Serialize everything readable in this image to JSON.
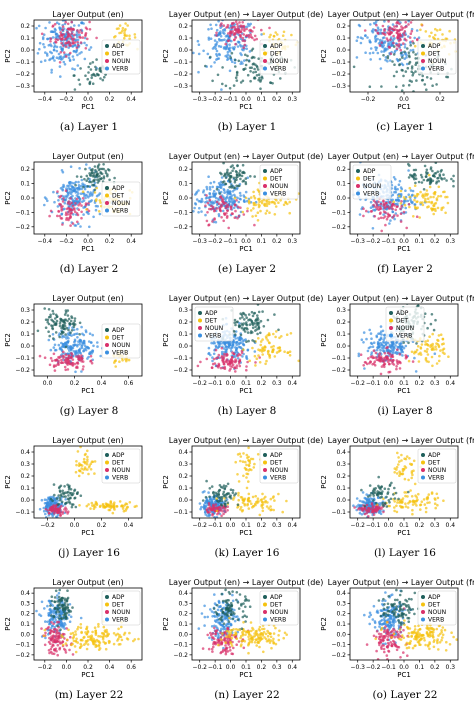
{
  "colors": {
    "ADP": "#1f5f5b",
    "DET": "#f5c20f",
    "NOUN": "#d9306a",
    "VERB": "#3a8fe0"
  },
  "legend": [
    "ADP",
    "DET",
    "NOUN",
    "VERB"
  ],
  "chart_data": [
    {
      "type": "scatter",
      "caption": "(a) Layer 1",
      "title": "Layer Output (en)",
      "xlabel": "PC1",
      "ylabel": "PC2",
      "xticks": [
        "−0.4",
        "−0.2",
        "0.0",
        "0.2",
        "0.4"
      ],
      "yticks": [
        "0.2",
        "0.1",
        "0.0",
        "−0.1",
        "−0.2",
        "−0.3"
      ],
      "xlim": [
        -0.45,
        0.45
      ],
      "ylim": [
        -0.33,
        0.22
      ],
      "legend_pos": "center-right",
      "clusters": {
        "VERB": [
          {
            "x": -0.2,
            "y": 0.05,
            "sx": 0.1,
            "sy": 0.1,
            "n": 200
          }
        ],
        "NOUN": [
          {
            "x": -0.15,
            "y": 0.1,
            "sx": 0.08,
            "sy": 0.06,
            "n": 90
          }
        ],
        "ADP": [
          {
            "x": 0.05,
            "y": -0.2,
            "sx": 0.08,
            "sy": 0.06,
            "n": 40
          }
        ],
        "DET": [
          {
            "x": 0.3,
            "y": 0.1,
            "sx": 0.05,
            "sy": 0.04,
            "n": 30
          }
        ]
      }
    },
    {
      "type": "scatter",
      "caption": "(b) Layer 1",
      "title": "Layer Output (en) → Layer Output (de)",
      "xlabel": "PC1",
      "ylabel": "PC2",
      "xticks": [
        "−0.3",
        "−0.2",
        "−0.1",
        "0.0",
        "0.1",
        "0.2",
        "0.3"
      ],
      "yticks": [
        "0.2",
        "0.1",
        "0.0",
        "−0.1",
        "−0.2",
        "−0.3"
      ],
      "xlim": [
        -0.32,
        0.32
      ],
      "ylim": [
        -0.33,
        0.22
      ],
      "legend_pos": "center-right",
      "clusters": {
        "VERB": [
          {
            "x": -0.1,
            "y": 0.05,
            "sx": 0.08,
            "sy": 0.09,
            "n": 170
          }
        ],
        "NOUN": [
          {
            "x": -0.05,
            "y": 0.12,
            "sx": 0.06,
            "sy": 0.05,
            "n": 90
          }
        ],
        "ADP": [
          {
            "x": 0.05,
            "y": -0.15,
            "sx": 0.1,
            "sy": 0.08,
            "n": 90
          }
        ],
        "DET": [
          {
            "x": 0.2,
            "y": 0.05,
            "sx": 0.06,
            "sy": 0.06,
            "n": 40
          }
        ]
      }
    },
    {
      "type": "scatter",
      "caption": "(c) Layer 1",
      "title": "Layer Output (en) → Layer Output (fr1",
      "xlabel": "PC1",
      "ylabel": "PC2",
      "xticks": [
        "−0.2",
        "0.0",
        "0.2"
      ],
      "yticks": [
        "0.2",
        "0.1",
        "0.0",
        "−0.1",
        "−0.2",
        "−0.3"
      ],
      "xlim": [
        -0.32,
        0.32
      ],
      "ylim": [
        -0.33,
        0.22
      ],
      "legend_pos": "center-right",
      "clusters": {
        "VERB": [
          {
            "x": -0.1,
            "y": 0.05,
            "sx": 0.08,
            "sy": 0.09,
            "n": 170
          }
        ],
        "NOUN": [
          {
            "x": -0.05,
            "y": 0.12,
            "sx": 0.06,
            "sy": 0.05,
            "n": 90
          }
        ],
        "ADP": [
          {
            "x": 0.08,
            "y": -0.15,
            "sx": 0.1,
            "sy": 0.08,
            "n": 90
          }
        ],
        "DET": [
          {
            "x": 0.2,
            "y": 0.05,
            "sx": 0.06,
            "sy": 0.06,
            "n": 40
          }
        ]
      }
    },
    {
      "type": "scatter",
      "caption": "(d) Layer 2",
      "title": "Layer Output (en)",
      "xlabel": "PC1",
      "ylabel": "PC2",
      "xticks": [
        "−0.4",
        "−0.2",
        "0.0",
        "0.2",
        "0.4"
      ],
      "yticks": [
        "0.2",
        "0.1",
        "0.0",
        "−0.1",
        "−0.2"
      ],
      "xlim": [
        -0.45,
        0.45
      ],
      "ylim": [
        -0.25,
        0.25
      ],
      "legend_pos": "center-right",
      "clusters": {
        "VERB": [
          {
            "x": -0.1,
            "y": 0.0,
            "sx": 0.1,
            "sy": 0.08,
            "n": 200
          }
        ],
        "NOUN": [
          {
            "x": -0.15,
            "y": -0.08,
            "sx": 0.07,
            "sy": 0.05,
            "n": 70
          }
        ],
        "ADP": [
          {
            "x": 0.05,
            "y": 0.15,
            "sx": 0.06,
            "sy": 0.04,
            "n": 70
          }
        ],
        "DET": [
          {
            "x": 0.2,
            "y": -0.02,
            "sx": 0.08,
            "sy": 0.05,
            "n": 60
          }
        ]
      }
    },
    {
      "type": "scatter",
      "caption": "(e) Layer 2",
      "title": "Layer Output (en) → Layer Output (de)",
      "xlabel": "PC1",
      "ylabel": "PC2",
      "xticks": [
        "−0.3",
        "−0.2",
        "−0.1",
        "0.0",
        "0.1",
        "0.2",
        "0.3"
      ],
      "yticks": [
        "0.2",
        "0.1",
        "0.0",
        "−0.1",
        "−0.2"
      ],
      "xlim": [
        -0.32,
        0.32
      ],
      "ylim": [
        -0.25,
        0.25
      ],
      "legend_pos": "top-right",
      "clusters": {
        "VERB": [
          {
            "x": -0.15,
            "y": 0.0,
            "sx": 0.08,
            "sy": 0.07,
            "n": 200
          }
        ],
        "NOUN": [
          {
            "x": -0.12,
            "y": -0.08,
            "sx": 0.06,
            "sy": 0.05,
            "n": 70
          }
        ],
        "ADP": [
          {
            "x": -0.08,
            "y": 0.15,
            "sx": 0.05,
            "sy": 0.05,
            "n": 70
          }
        ],
        "DET": [
          {
            "x": 0.12,
            "y": -0.02,
            "sx": 0.08,
            "sy": 0.05,
            "n": 80
          }
        ]
      }
    },
    {
      "type": "scatter",
      "caption": "(f) Layer 2",
      "title": "Layer Output (en) → Layer Output (fr1",
      "xlabel": "PC1",
      "ylabel": "PC2",
      "xticks": [
        "−0.3",
        "−0.2",
        "−0.1",
        "0.0",
        "0.1",
        "0.2",
        "0.3"
      ],
      "yticks": [
        "0.2",
        "0.1",
        "0.0",
        "−0.1",
        "−0.2"
      ],
      "xlim": [
        -0.32,
        0.32
      ],
      "ylim": [
        -0.25,
        0.25
      ],
      "legend_pos": "top-left",
      "clusters": {
        "VERB": [
          {
            "x": -0.1,
            "y": 0.0,
            "sx": 0.08,
            "sy": 0.07,
            "n": 200
          }
        ],
        "NOUN": [
          {
            "x": -0.12,
            "y": -0.08,
            "sx": 0.06,
            "sy": 0.05,
            "n": 70
          }
        ],
        "ADP": [
          {
            "x": 0.15,
            "y": 0.15,
            "sx": 0.06,
            "sy": 0.04,
            "n": 70
          }
        ],
        "DET": [
          {
            "x": 0.12,
            "y": -0.02,
            "sx": 0.08,
            "sy": 0.05,
            "n": 80
          }
        ]
      }
    },
    {
      "type": "scatter",
      "caption": "(g) Layer 8",
      "title": "Layer Output (en)",
      "xlabel": "PC1",
      "ylabel": "PC2",
      "xticks": [
        "0.0",
        "0.2",
        "0.4",
        "0.6"
      ],
      "yticks": [
        "0.3",
        "0.2",
        "0.1",
        "0.0",
        "−0.1",
        "−0.2"
      ],
      "xlim": [
        -0.15,
        0.65
      ],
      "ylim": [
        -0.25,
        0.35
      ],
      "legend_pos": "center-right",
      "clusters": {
        "VERB": [
          {
            "x": 0.15,
            "y": 0.0,
            "sx": 0.08,
            "sy": 0.07,
            "n": 180
          }
        ],
        "NOUN": [
          {
            "x": 0.1,
            "y": -0.12,
            "sx": 0.07,
            "sy": 0.04,
            "n": 90
          }
        ],
        "ADP": [
          {
            "x": 0.05,
            "y": 0.18,
            "sx": 0.06,
            "sy": 0.06,
            "n": 90
          }
        ],
        "DET": [
          {
            "x": 0.5,
            "y": -0.1,
            "sx": 0.04,
            "sy": 0.03,
            "n": 25
          }
        ]
      }
    },
    {
      "type": "scatter",
      "caption": "(h) Layer 8",
      "title": "Layer Output (en) → Layer Output (de)",
      "xlabel": "PC1",
      "ylabel": "PC2",
      "xticks": [
        "−0.2",
        "−0.1",
        "0.0",
        "0.1",
        "0.2",
        "0.3",
        "0.4"
      ],
      "yticks": [
        "0.3",
        "0.2",
        "0.1",
        "0.0",
        "−0.1",
        "−0.2"
      ],
      "xlim": [
        -0.25,
        0.45
      ],
      "ylim": [
        -0.25,
        0.35
      ],
      "legend_pos": "top-left",
      "clusters": {
        "VERB": [
          {
            "x": 0.0,
            "y": 0.0,
            "sx": 0.07,
            "sy": 0.07,
            "n": 180
          }
        ],
        "NOUN": [
          {
            "x": -0.02,
            "y": -0.12,
            "sx": 0.07,
            "sy": 0.04,
            "n": 90
          }
        ],
        "ADP": [
          {
            "x": 0.12,
            "y": 0.18,
            "sx": 0.07,
            "sy": 0.06,
            "n": 90
          }
        ],
        "DET": [
          {
            "x": 0.25,
            "y": -0.02,
            "sx": 0.06,
            "sy": 0.06,
            "n": 70
          }
        ]
      }
    },
    {
      "type": "scatter",
      "caption": "(i) Layer 8",
      "title": "Layer Output (en) → Layer Output (fr1",
      "xlabel": "PC1",
      "ylabel": "PC2",
      "xticks": [
        "−0.2",
        "−0.1",
        "0.0",
        "0.1",
        "0.2",
        "0.3",
        "0.4"
      ],
      "yticks": [
        "0.3",
        "0.2",
        "0.1",
        "0.0",
        "−0.1",
        "−0.2"
      ],
      "xlim": [
        -0.25,
        0.45
      ],
      "ylim": [
        -0.25,
        0.35
      ],
      "legend_pos": "top-center",
      "clusters": {
        "VERB": [
          {
            "x": 0.0,
            "y": 0.0,
            "sx": 0.07,
            "sy": 0.07,
            "n": 180
          }
        ],
        "NOUN": [
          {
            "x": -0.02,
            "y": -0.12,
            "sx": 0.07,
            "sy": 0.04,
            "n": 90
          }
        ],
        "ADP": [
          {
            "x": 0.15,
            "y": 0.18,
            "sx": 0.06,
            "sy": 0.07,
            "n": 90
          }
        ],
        "DET": [
          {
            "x": 0.25,
            "y": -0.02,
            "sx": 0.06,
            "sy": 0.06,
            "n": 70
          }
        ]
      }
    },
    {
      "type": "scatter",
      "caption": "(j) Layer 16",
      "title": "Layer Output (en)",
      "xlabel": "PC1",
      "ylabel": "PC2",
      "xticks": [
        "−0.2",
        "0.0",
        "0.2",
        "0.4"
      ],
      "yticks": [
        "0.4",
        "0.3",
        "0.2",
        "0.1",
        "0.0",
        "−0.1"
      ],
      "xlim": [
        -0.3,
        0.55
      ],
      "ylim": [
        -0.15,
        0.45
      ],
      "legend_pos": "top-right",
      "clusters": {
        "VERB": [
          {
            "x": -0.15,
            "y": -0.05,
            "sx": 0.04,
            "sy": 0.04,
            "n": 150
          }
        ],
        "NOUN": [
          {
            "x": -0.12,
            "y": -0.08,
            "sx": 0.04,
            "sy": 0.02,
            "n": 60
          }
        ],
        "ADP": [
          {
            "x": -0.05,
            "y": 0.05,
            "sx": 0.05,
            "sy": 0.05,
            "n": 60
          }
        ],
        "DET": [
          {
            "x": 0.1,
            "y": 0.3,
            "sx": 0.04,
            "sy": 0.06,
            "n": 40
          },
          {
            "x": 0.3,
            "y": -0.05,
            "sx": 0.1,
            "sy": 0.02,
            "n": 70
          }
        ]
      }
    },
    {
      "type": "scatter",
      "caption": "(k) Layer 16",
      "title": "Layer Output (en) → Layer Output (de)",
      "xlabel": "PC1",
      "ylabel": "PC2",
      "xticks": [
        "−0.2",
        "−0.1",
        "0.0",
        "0.1",
        "0.2",
        "0.3",
        "0.4"
      ],
      "yticks": [
        "0.4",
        "0.3",
        "0.2",
        "0.1",
        "0.0",
        "−0.1"
      ],
      "xlim": [
        -0.25,
        0.45
      ],
      "ylim": [
        -0.15,
        0.45
      ],
      "legend_pos": "top-right",
      "clusters": {
        "VERB": [
          {
            "x": -0.12,
            "y": -0.05,
            "sx": 0.04,
            "sy": 0.04,
            "n": 150
          }
        ],
        "NOUN": [
          {
            "x": -0.1,
            "y": -0.08,
            "sx": 0.04,
            "sy": 0.02,
            "n": 60
          }
        ],
        "ADP": [
          {
            "x": -0.05,
            "y": 0.05,
            "sx": 0.05,
            "sy": 0.05,
            "n": 60
          }
        ],
        "DET": [
          {
            "x": 0.12,
            "y": 0.3,
            "sx": 0.04,
            "sy": 0.06,
            "n": 40
          },
          {
            "x": 0.15,
            "y": -0.02,
            "sx": 0.1,
            "sy": 0.04,
            "n": 80
          }
        ]
      }
    },
    {
      "type": "scatter",
      "caption": "(l) Layer 16",
      "title": "Layer Output (en) → Layer Output (fr1",
      "xlabel": "PC1",
      "ylabel": "PC2",
      "xticks": [
        "−0.2",
        "−0.1",
        "0.0",
        "0.1",
        "0.2",
        "0.3",
        "0.4"
      ],
      "yticks": [
        "0.4",
        "0.3",
        "0.2",
        "0.1",
        "0.0",
        "−0.1"
      ],
      "xlim": [
        -0.25,
        0.45
      ],
      "ylim": [
        -0.15,
        0.45
      ],
      "legend_pos": "top-right",
      "clusters": {
        "VERB": [
          {
            "x": -0.12,
            "y": -0.05,
            "sx": 0.04,
            "sy": 0.04,
            "n": 150
          }
        ],
        "NOUN": [
          {
            "x": -0.1,
            "y": -0.08,
            "sx": 0.04,
            "sy": 0.02,
            "n": 60
          }
        ],
        "ADP": [
          {
            "x": -0.05,
            "y": 0.05,
            "sx": 0.05,
            "sy": 0.05,
            "n": 60
          }
        ],
        "DET": [
          {
            "x": 0.1,
            "y": 0.28,
            "sx": 0.04,
            "sy": 0.06,
            "n": 40
          },
          {
            "x": 0.15,
            "y": -0.02,
            "sx": 0.1,
            "sy": 0.04,
            "n": 80
          }
        ]
      }
    },
    {
      "type": "scatter",
      "caption": "(m) Layer 22",
      "title": "Layer Output (en)",
      "xlabel": "PC1",
      "ylabel": "PC2",
      "xticks": [
        "−0.2",
        "0.0",
        "0.2",
        "0.4",
        "0.6"
      ],
      "yticks": [
        "0.4",
        "0.3",
        "0.2",
        "0.1",
        "0.0",
        "−0.1",
        "−0.2"
      ],
      "xlim": [
        -0.3,
        0.65
      ],
      "ylim": [
        -0.25,
        0.45
      ],
      "legend_pos": "top-right",
      "clusters": {
        "VERB": [
          {
            "x": -0.1,
            "y": 0.15,
            "sx": 0.06,
            "sy": 0.1,
            "n": 150
          }
        ],
        "NOUN": [
          {
            "x": -0.1,
            "y": -0.05,
            "sx": 0.06,
            "sy": 0.07,
            "n": 100
          }
        ],
        "ADP": [
          {
            "x": -0.05,
            "y": 0.25,
            "sx": 0.05,
            "sy": 0.07,
            "n": 80
          }
        ],
        "DET": [
          {
            "x": 0.25,
            "y": -0.03,
            "sx": 0.15,
            "sy": 0.06,
            "n": 140
          }
        ]
      }
    },
    {
      "type": "scatter",
      "caption": "(n) Layer 22",
      "title": "Layer Output (en) → Layer Output (de)",
      "xlabel": "PC1",
      "ylabel": "PC2",
      "xticks": [
        "−0.2",
        "−0.1",
        "0.0",
        "0.1",
        "0.2",
        "0.3",
        "0.4"
      ],
      "yticks": [
        "0.4",
        "0.3",
        "0.2",
        "0.1",
        "0.0",
        "−0.1",
        "−0.2"
      ],
      "xlim": [
        -0.25,
        0.45
      ],
      "ylim": [
        -0.25,
        0.45
      ],
      "legend_pos": "top-right",
      "clusters": {
        "VERB": [
          {
            "x": -0.05,
            "y": 0.15,
            "sx": 0.05,
            "sy": 0.1,
            "n": 150
          }
        ],
        "NOUN": [
          {
            "x": -0.05,
            "y": -0.05,
            "sx": 0.05,
            "sy": 0.07,
            "n": 100
          }
        ],
        "ADP": [
          {
            "x": 0.0,
            "y": 0.25,
            "sx": 0.05,
            "sy": 0.07,
            "n": 80
          }
        ],
        "DET": [
          {
            "x": 0.15,
            "y": -0.02,
            "sx": 0.1,
            "sy": 0.06,
            "n": 140
          }
        ]
      }
    },
    {
      "type": "scatter",
      "caption": "(o) Layer 22",
      "title": "Layer Output (en) → Layer Output (fr1",
      "xlabel": "PC1",
      "ylabel": "PC2",
      "xticks": [
        "−0.3",
        "−0.2",
        "−0.1",
        "0.0",
        "0.1",
        "0.2",
        "0.3"
      ],
      "yticks": [
        "0.4",
        "0.3",
        "0.2",
        "0.1",
        "0.0",
        "−0.1",
        "−0.2"
      ],
      "xlim": [
        -0.32,
        0.35
      ],
      "ylim": [
        -0.25,
        0.45
      ],
      "legend_pos": "top-right",
      "clusters": {
        "VERB": [
          {
            "x": -0.08,
            "y": 0.15,
            "sx": 0.05,
            "sy": 0.1,
            "n": 150
          }
        ],
        "NOUN": [
          {
            "x": -0.08,
            "y": -0.05,
            "sx": 0.05,
            "sy": 0.07,
            "n": 100
          }
        ],
        "ADP": [
          {
            "x": -0.02,
            "y": 0.25,
            "sx": 0.05,
            "sy": 0.07,
            "n": 80
          }
        ],
        "DET": [
          {
            "x": 0.12,
            "y": -0.02,
            "sx": 0.1,
            "sy": 0.06,
            "n": 140
          }
        ]
      }
    }
  ]
}
